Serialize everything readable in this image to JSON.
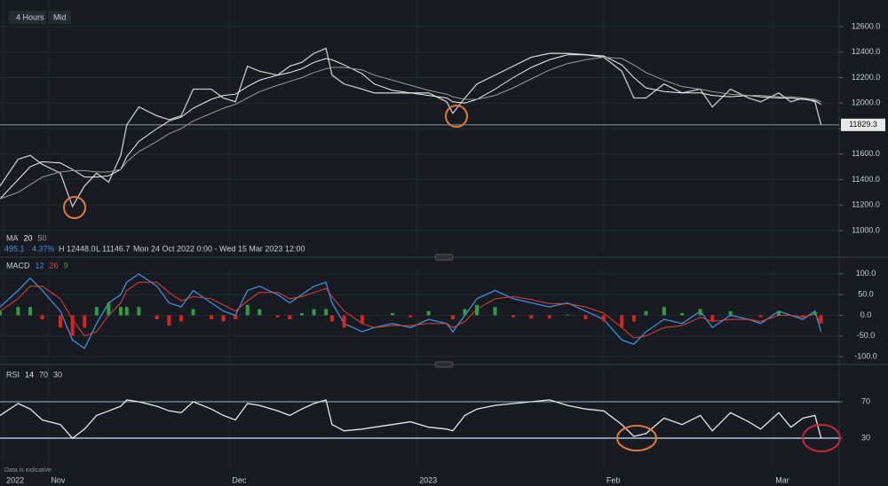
{
  "toolbar": [
    "4 Hours",
    "Mid"
  ],
  "info": {
    "change": "495.1",
    "change_pct": "4.37%",
    "high": "H 12448.0",
    "low": "L 11146.7",
    "range": "Mon 24 Oct 2022 0:00 - Wed 15 Mar 2023 12:00"
  },
  "disclaimer": "Data is indicative",
  "chart_data": [
    {
      "type": "line",
      "indicator_label": "MA",
      "x": [
        0,
        3,
        5,
        7,
        10,
        12,
        14,
        16,
        18,
        20,
        21,
        23,
        26,
        28,
        30,
        32,
        35,
        37,
        39,
        41,
        43,
        46,
        48,
        50,
        52,
        54,
        55,
        57,
        60,
        62,
        65,
        68,
        71,
        74,
        75,
        77,
        79,
        82,
        85,
        88,
        91,
        94,
        97,
        100,
        103,
        105,
        107,
        110,
        113,
        116,
        118,
        121,
        124,
        126,
        129,
        131,
        133,
        135,
        136
      ],
      "series": [
        {
          "color": "#c8c8c8",
          "values": [
            11350,
            11560,
            11590,
            11520,
            11450,
            11190,
            11350,
            11450,
            11380,
            11590,
            11830,
            11970,
            11900,
            11870,
            11900,
            12110,
            12110,
            12040,
            12010,
            12290,
            12250,
            12220,
            12290,
            12320,
            12390,
            12430,
            12220,
            12150,
            12110,
            12080,
            12080,
            12080,
            12080,
            12010,
            11920,
            12040,
            12150,
            12220,
            12290,
            12360,
            12390,
            12390,
            12380,
            12360,
            12250,
            12040,
            12040,
            12150,
            12080,
            12110,
            11970,
            12110,
            12040,
            12010,
            12080,
            12010,
            12040,
            12010,
            11830
          ]
        },
        {
          "name": "20",
          "color": "#f0f0f0",
          "values": [
            11250,
            11400,
            11500,
            11540,
            11530,
            11480,
            11420,
            11420,
            11430,
            11480,
            11580,
            11700,
            11800,
            11860,
            11890,
            11960,
            12030,
            12060,
            12070,
            12130,
            12180,
            12220,
            12240,
            12270,
            12320,
            12350,
            12340,
            12300,
            12230,
            12150,
            12100,
            12080,
            12060,
            12040,
            12010,
            12000,
            12030,
            12110,
            12200,
            12280,
            12340,
            12380,
            12380,
            12370,
            12300,
            12200,
            12120,
            12090,
            12080,
            12080,
            12060,
            12050,
            12060,
            12050,
            12040,
            12040,
            12030,
            12020,
            11990
          ]
        },
        {
          "name": "50",
          "color": "#9a9a9a",
          "values": [
            11250,
            11300,
            11360,
            11420,
            11460,
            11470,
            11470,
            11460,
            11460,
            11480,
            11540,
            11620,
            11700,
            11760,
            11800,
            11860,
            11920,
            11960,
            11990,
            12040,
            12090,
            12140,
            12170,
            12200,
            12240,
            12270,
            12280,
            12280,
            12260,
            12220,
            12180,
            12140,
            12100,
            12070,
            12050,
            12030,
            12030,
            12060,
            12120,
            12190,
            12260,
            12310,
            12340,
            12360,
            12350,
            12300,
            12240,
            12180,
            12130,
            12110,
            12090,
            12070,
            12060,
            12060,
            12050,
            12050,
            12040,
            12030,
            12010
          ]
        }
      ],
      "last_price": 11829.3,
      "xlim": [
        0,
        139
      ],
      "ylim": [
        10826,
        12809
      ],
      "yticks": [
        {
          "value": 11000,
          "label": "11000.0"
        },
        {
          "value": 11200,
          "label": "11200.0"
        },
        {
          "value": 11400,
          "label": "11400.0"
        },
        {
          "value": 11600,
          "label": "11600.0"
        },
        {
          "value": 11800,
          "label": "11800.0"
        },
        {
          "value": 12000,
          "label": "12000.0"
        },
        {
          "value": 12200,
          "label": "12200.0"
        },
        {
          "value": 12400,
          "label": "12400.0"
        },
        {
          "value": 12600,
          "label": "12600.0"
        }
      ]
    },
    {
      "type": "line",
      "indicator_label": "MACD",
      "x": [
        0,
        3,
        5,
        7,
        10,
        12,
        14,
        16,
        18,
        20,
        21,
        23,
        26,
        28,
        30,
        32,
        35,
        37,
        39,
        41,
        43,
        46,
        48,
        50,
        52,
        54,
        55,
        57,
        60,
        62,
        65,
        68,
        71,
        74,
        75,
        77,
        79,
        82,
        85,
        88,
        91,
        94,
        97,
        100,
        103,
        105,
        107,
        110,
        113,
        116,
        118,
        121,
        124,
        126,
        129,
        131,
        133,
        135,
        136
      ],
      "series": [
        {
          "name": "12",
          "color": "#3d8fe0",
          "values": [
            20,
            60,
            90,
            60,
            10,
            -60,
            -80,
            -20,
            30,
            50,
            80,
            100,
            70,
            30,
            20,
            60,
            30,
            10,
            0,
            60,
            70,
            50,
            30,
            50,
            70,
            80,
            30,
            -20,
            -40,
            -30,
            -20,
            -30,
            -10,
            -20,
            -40,
            0,
            40,
            60,
            40,
            30,
            20,
            30,
            10,
            -10,
            -60,
            -70,
            -40,
            -10,
            -20,
            10,
            -30,
            0,
            -10,
            -20,
            10,
            0,
            -10,
            10,
            -40
          ]
        },
        {
          "name": "26",
          "color": "#e0403a",
          "values": [
            10,
            40,
            70,
            70,
            40,
            -10,
            -50,
            -40,
            0,
            30,
            60,
            80,
            80,
            55,
            35,
            45,
            40,
            25,
            10,
            35,
            55,
            55,
            40,
            45,
            55,
            65,
            45,
            10,
            -20,
            -30,
            -25,
            -25,
            -20,
            -20,
            -30,
            -15,
            15,
            40,
            45,
            38,
            28,
            28,
            20,
            5,
            -30,
            -55,
            -50,
            -30,
            -25,
            -5,
            -15,
            -10,
            -10,
            -15,
            0,
            0,
            -5,
            3,
            -20
          ]
        },
        {
          "name": "9",
          "kind": "bar",
          "color": "#2ea043",
          "negative_color": "#d8261f",
          "values": [
            10,
            20,
            20,
            -10,
            -30,
            -50,
            -30,
            20,
            30,
            20,
            20,
            20,
            -10,
            -25,
            -15,
            15,
            -10,
            -15,
            -10,
            25,
            15,
            -5,
            -10,
            5,
            15,
            15,
            -15,
            -30,
            -20,
            0,
            5,
            -5,
            10,
            0,
            -10,
            15,
            25,
            20,
            -5,
            -8,
            -8,
            2,
            -10,
            -15,
            -30,
            -15,
            10,
            20,
            5,
            15,
            -15,
            10,
            0,
            -5,
            10,
            0,
            -5,
            7,
            -20
          ]
        }
      ],
      "xlim": [
        0,
        139
      ],
      "ylim": [
        -117,
        119
      ],
      "yticks": [
        {
          "value": 100,
          "label": "100.0"
        },
        {
          "value": 50,
          "label": "50.0"
        },
        {
          "value": 0,
          "label": "0.0"
        },
        {
          "value": -50,
          "label": "-50.0"
        },
        {
          "value": -100,
          "label": "-100.0"
        }
      ]
    },
    {
      "type": "line",
      "indicator_label": "RSI",
      "x": [
        0,
        3,
        5,
        7,
        10,
        12,
        14,
        16,
        18,
        20,
        21,
        23,
        26,
        28,
        30,
        32,
        35,
        37,
        39,
        41,
        43,
        46,
        48,
        50,
        52,
        54,
        55,
        57,
        60,
        62,
        65,
        68,
        71,
        74,
        75,
        77,
        79,
        82,
        85,
        88,
        91,
        94,
        97,
        100,
        103,
        105,
        107,
        110,
        113,
        116,
        118,
        121,
        124,
        126,
        129,
        131,
        133,
        135,
        136
      ],
      "series": [
        {
          "name": "14",
          "color": "#e8e8e8",
          "values": [
            55,
            68,
            62,
            50,
            45,
            30,
            40,
            55,
            60,
            65,
            72,
            70,
            65,
            60,
            58,
            70,
            62,
            55,
            50,
            68,
            66,
            60,
            55,
            62,
            68,
            72,
            45,
            38,
            40,
            42,
            45,
            48,
            42,
            40,
            38,
            55,
            62,
            66,
            68,
            70,
            72,
            66,
            62,
            60,
            45,
            32,
            35,
            52,
            45,
            55,
            38,
            58,
            48,
            40,
            58,
            42,
            52,
            55,
            30
          ]
        }
      ],
      "xlim": [
        0,
        139
      ],
      "ylim": [
        -5,
        107
      ],
      "yticks": [
        70,
        30
      ],
      "xticks": [
        {
          "value": 0.6,
          "label": "2022"
        },
        {
          "value": 8,
          "label": "Nov"
        },
        {
          "value": 38,
          "label": "Dec"
        },
        {
          "value": 69,
          "label": "2023"
        },
        {
          "value": 100,
          "label": "Feb"
        },
        {
          "value": 128,
          "label": "Mar"
        }
      ]
    }
  ]
}
